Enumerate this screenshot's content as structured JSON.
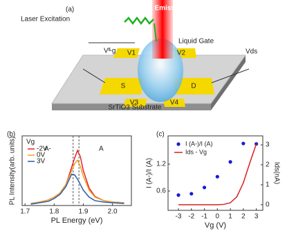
{
  "diagram": {
    "panel_label": "(a)",
    "laser": "Laser Excitation",
    "emission": "PL Emission",
    "liquid_gate": "Liquid Gate",
    "gate_voltage": "Vᴵᴸg",
    "drain_voltage": "Vds",
    "probes": [
      "V1",
      "V2",
      "V3",
      "V4"
    ],
    "source": "S",
    "drain": "D",
    "substrate": "SrTiO3 Substrate"
  },
  "chart_data": [
    {
      "type": "line",
      "panel_label": "(b)",
      "xlabel": "PL Energy (eV)",
      "ylabel": "PL Intensity(arb. units)",
      "x": [
        1.72,
        1.75,
        1.78,
        1.8,
        1.82,
        1.84,
        1.85,
        1.86,
        1.87,
        1.88,
        1.89,
        1.9,
        1.92,
        1.94,
        1.97,
        2.0,
        2.04
      ],
      "series": [
        {
          "name": "-2V",
          "color": "#e0202a",
          "values": [
            0.03,
            0.05,
            0.08,
            0.12,
            0.18,
            0.3,
            0.42,
            0.55,
            0.68,
            0.79,
            0.7,
            0.5,
            0.25,
            0.13,
            0.07,
            0.05,
            0.04
          ]
        },
        {
          "name": "0V",
          "color": "#f0a020",
          "values": [
            0.03,
            0.05,
            0.08,
            0.12,
            0.18,
            0.3,
            0.4,
            0.5,
            0.6,
            0.65,
            0.56,
            0.42,
            0.22,
            0.12,
            0.07,
            0.05,
            0.04
          ]
        },
        {
          "name": "3V",
          "color": "#2a5ca8",
          "values": [
            0.02,
            0.04,
            0.06,
            0.1,
            0.16,
            0.27,
            0.36,
            0.45,
            0.44,
            0.38,
            0.3,
            0.22,
            0.12,
            0.07,
            0.05,
            0.04,
            0.03
          ]
        }
      ],
      "xlim": [
        1.69,
        2.065
      ],
      "xticks": [
        1.7,
        1.8,
        1.9,
        {
          "value": 2,
          "label": "2.0"
        }
      ],
      "ylim": [
        0,
        1
      ],
      "legend_title": "Vg",
      "annotations": [
        "A-",
        "A"
      ],
      "vlines": [
        1.865,
        1.885
      ]
    },
    {
      "type": "combo",
      "panel_label": "(c)",
      "xlabel": "Vg (V)",
      "ylabel": "I (A-)/I (A)",
      "y2label": "Ids(nA)",
      "series": [
        {
          "name": "I (A-)/I (A)",
          "color": "#1a1ad8",
          "type": "scatter",
          "x": [
            -3,
            -2,
            -1,
            0,
            1,
            2,
            3
          ],
          "values": [
            0.51,
            0.54,
            0.68,
            0.92,
            1.25,
            1.66,
            1.65
          ]
        },
        {
          "name": "Ids - Vg",
          "color": "#d62020",
          "type": "line",
          "axis": "y2",
          "x": [
            -3,
            -2,
            -1,
            0,
            0.5,
            1,
            1.5,
            2,
            2.5,
            3
          ],
          "values": [
            0,
            0,
            0,
            0,
            0.02,
            0.1,
            0.4,
            1.1,
            2.1,
            3.05
          ]
        }
      ],
      "xlim": [
        -3.8,
        3.5
      ],
      "xticks": [
        -3,
        -2,
        -1,
        0,
        1,
        2,
        3
      ],
      "ylim": [
        0.17,
        1.83
      ],
      "yticks": [
        0.6,
        1.2
      ],
      "y2lim": [
        -0.28,
        3.45
      ],
      "y2ticks": [
        0,
        1,
        2,
        3
      ]
    }
  ]
}
